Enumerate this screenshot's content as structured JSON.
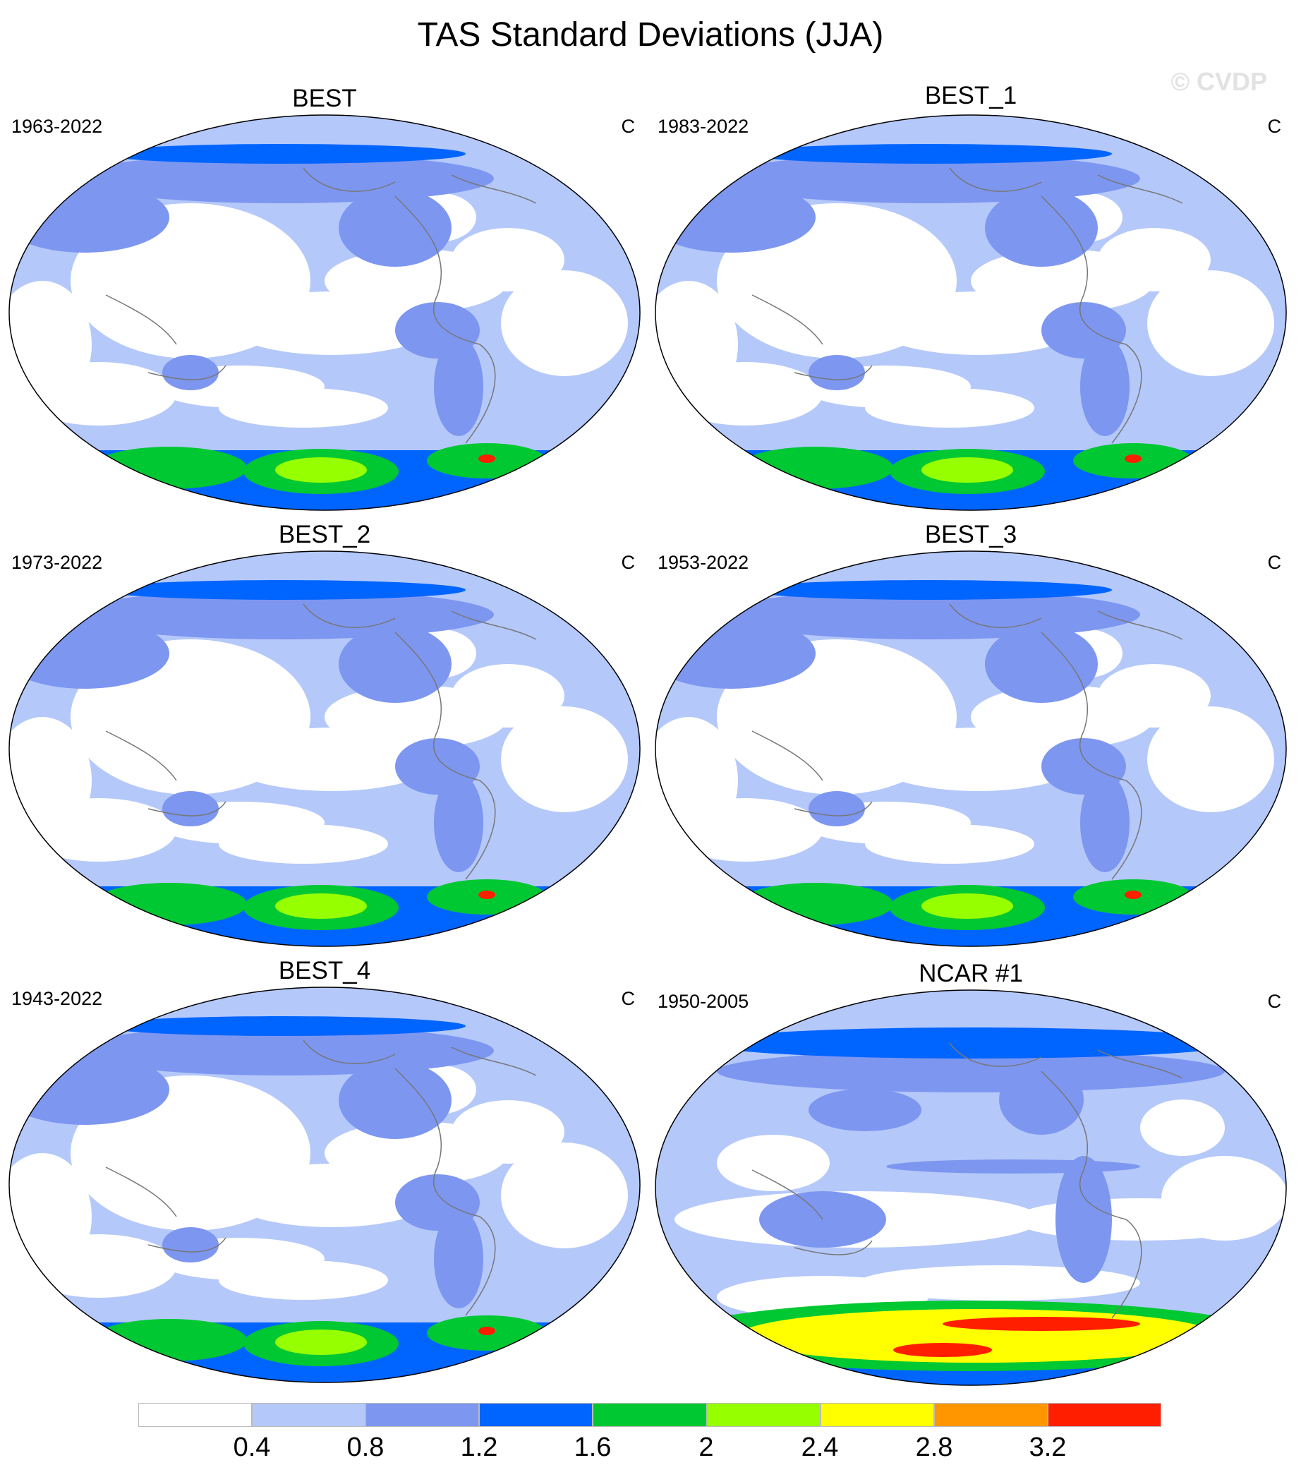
{
  "title": "TAS Standard Deviations (JJA)",
  "watermark": "© CVDP",
  "colorbar": {
    "colors": [
      "#ffffff",
      "#b4c8fa",
      "#7d96f0",
      "#0064ff",
      "#00c832",
      "#96ff00",
      "#ffff00",
      "#ff9600",
      "#ff1e00"
    ],
    "labels": [
      "0.4",
      "0.8",
      "1.2",
      "1.6",
      "2",
      "2.4",
      "2.8",
      "3.2"
    ]
  },
  "panels": [
    {
      "title": "BEST",
      "years": "1963-2022",
      "unit": "C",
      "variant": "obs"
    },
    {
      "title": "BEST_1",
      "years": "1983-2022",
      "unit": "C",
      "variant": "obs"
    },
    {
      "title": "BEST_2",
      "years": "1973-2022",
      "unit": "C",
      "variant": "obs"
    },
    {
      "title": "BEST_3",
      "years": "1953-2022",
      "unit": "C",
      "variant": "obs"
    },
    {
      "title": "BEST_4",
      "years": "1943-2022",
      "unit": "C",
      "variant": "obs"
    },
    {
      "title": "NCAR #1",
      "years": "1950-2005",
      "unit": "C",
      "variant": "model"
    }
  ]
}
